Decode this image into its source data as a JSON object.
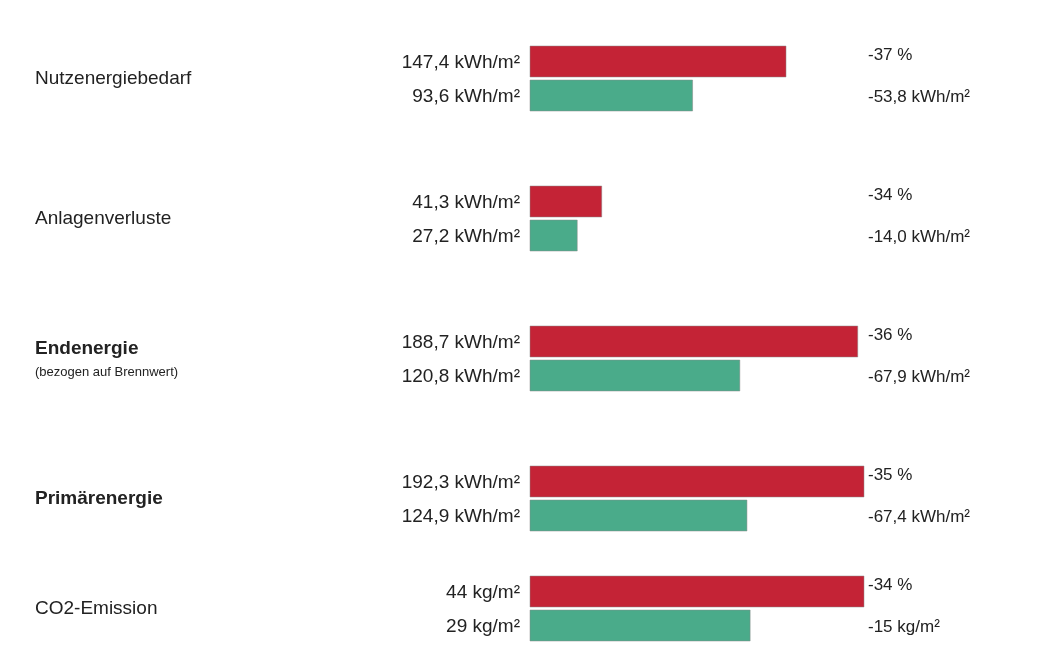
{
  "chart_data": [
    {
      "type": "bar",
      "orientation": "horizontal",
      "categories": [
        "Nutzenergiebedarf",
        "Anlagenverluste",
        "Endenergie",
        "Primärenergie"
      ],
      "series": [
        {
          "color": "#c42336",
          "values": [
            147.4,
            41.3,
            188.7,
            192.3
          ],
          "value_labels": [
            "147,4 kWh/m²",
            "41,3 kWh/m²",
            "188,7 kWh/m²",
            "192,3 kWh/m²"
          ]
        },
        {
          "color": "#4aab8a",
          "values": [
            93.6,
            27.2,
            120.8,
            124.9
          ],
          "value_labels": [
            "93,6 kWh/m²",
            "27,2 kWh/m²",
            "120,8 kWh/m²",
            "124,9 kWh/m²"
          ]
        }
      ],
      "annotations": [
        "-37 %",
        "-53,8 kWh/m²",
        "-34 %",
        "-14,0 kWh/m²",
        "-36 %",
        "-67,9 kWh/m²",
        "-35 %",
        "-67,4 kWh/m²",
        "(bezogen auf Brennwert)"
      ]
    },
    {
      "type": "bar",
      "orientation": "horizontal",
      "categories": [
        "CO2-Emission"
      ],
      "series": [
        {
          "color": "#c42336",
          "values": [
            44
          ],
          "value_labels": [
            "44 kg/m²"
          ]
        },
        {
          "color": "#4aab8a",
          "values": [
            29
          ],
          "value_labels": [
            "29 kg/m²"
          ]
        }
      ],
      "annotations": [
        "-34 %",
        "-15 kg/m²"
      ]
    }
  ]
}
